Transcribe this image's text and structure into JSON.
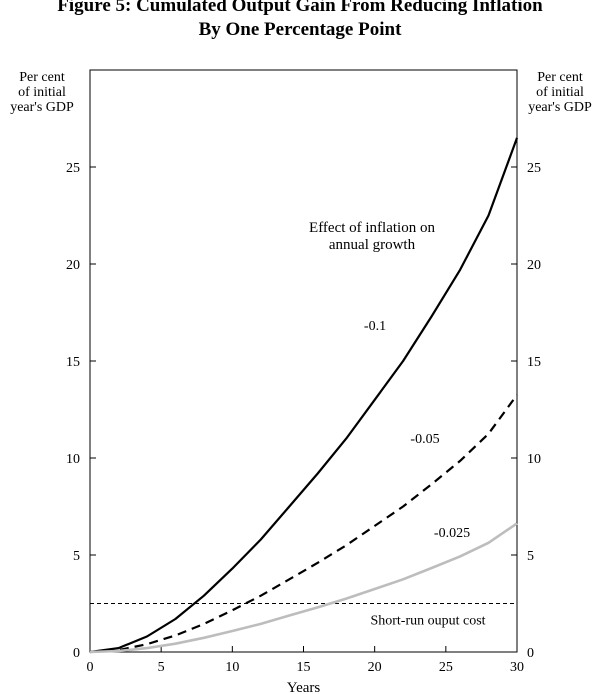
{
  "chart_data": {
    "type": "line",
    "title": "Figure 5: Cumulated Output Gain From Reducing Inflation",
    "subtitle": "By One Percentage Point",
    "xlabel": "Years",
    "ylabel_left": [
      "Per cent",
      "of initial",
      "year's GDP"
    ],
    "ylabel_right": [
      "Per cent",
      "of initial",
      "year's GDP"
    ],
    "xlim": [
      0,
      30
    ],
    "ylim": [
      0,
      30
    ],
    "xticks": [
      0,
      5,
      10,
      15,
      20,
      25,
      30
    ],
    "yticks": [
      0,
      5,
      10,
      15,
      20,
      25
    ],
    "grid": false,
    "legend_title": [
      "Effect of inflation on",
      "annual growth"
    ],
    "series": [
      {
        "name": "-0.1",
        "style": "solid",
        "color": "#000000",
        "x": [
          0,
          2,
          4,
          6,
          8,
          10,
          12,
          14,
          16,
          18,
          20,
          22,
          24,
          26,
          28,
          30
        ],
        "y": [
          0,
          0.2,
          0.8,
          1.7,
          2.9,
          4.3,
          5.8,
          7.5,
          9.2,
          11.0,
          13.0,
          15.0,
          17.3,
          19.7,
          22.5,
          26.5
        ]
      },
      {
        "name": "-0.05",
        "style": "dashed",
        "color": "#000000",
        "x": [
          0,
          2,
          4,
          6,
          8,
          10,
          12,
          14,
          16,
          18,
          20,
          22,
          24,
          26,
          28,
          30
        ],
        "y": [
          0,
          0.1,
          0.4,
          0.85,
          1.45,
          2.15,
          2.9,
          3.75,
          4.6,
          5.5,
          6.5,
          7.5,
          8.65,
          9.85,
          11.25,
          13.25
        ]
      },
      {
        "name": "-0.025",
        "style": "solid",
        "color": "#bdbdbd",
        "x": [
          0,
          2,
          4,
          6,
          8,
          10,
          12,
          14,
          16,
          18,
          20,
          22,
          24,
          26,
          28,
          30
        ],
        "y": [
          0,
          0.05,
          0.2,
          0.43,
          0.73,
          1.08,
          1.45,
          1.88,
          2.3,
          2.75,
          3.25,
          3.75,
          4.33,
          4.93,
          5.63,
          6.63
        ]
      }
    ],
    "reference_lines": [
      {
        "label": "Short-run ouput cost",
        "y": 2.5,
        "style": "dashed"
      }
    ]
  }
}
